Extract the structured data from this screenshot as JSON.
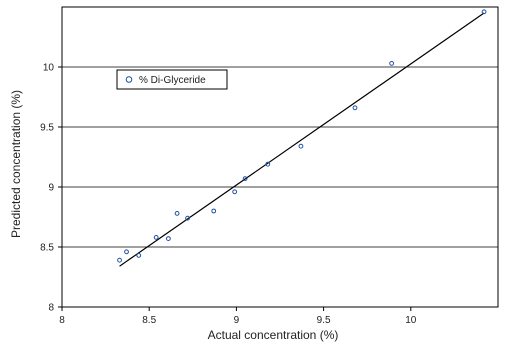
{
  "chart_data": {
    "type": "scatter",
    "xlabel": "Actual concentration (%)",
    "ylabel": "Predicted concentration (%)",
    "xlim": [
      8,
      10.5
    ],
    "ylim": [
      8,
      10.5
    ],
    "x_ticks": [
      8,
      8.5,
      9,
      9.5,
      10
    ],
    "x_tick_labels": [
      "8",
      "8.5",
      "9",
      "9.5",
      "10"
    ],
    "y_ticks": [
      8,
      8.5,
      9,
      9.5,
      10
    ],
    "y_tick_labels": [
      "8",
      "8.5",
      "9",
      "9.5",
      "10"
    ],
    "grid": "horizontal",
    "legend_position": "top-left",
    "series": [
      {
        "name": "% Di-Glyceride",
        "marker": "open-circle",
        "color": "#1f4fa3",
        "points": [
          {
            "x": 8.33,
            "y": 8.39
          },
          {
            "x": 8.37,
            "y": 8.46
          },
          {
            "x": 8.44,
            "y": 8.43
          },
          {
            "x": 8.54,
            "y": 8.58
          },
          {
            "x": 8.61,
            "y": 8.57
          },
          {
            "x": 8.66,
            "y": 8.78
          },
          {
            "x": 8.72,
            "y": 8.74
          },
          {
            "x": 8.87,
            "y": 8.8
          },
          {
            "x": 8.99,
            "y": 8.96
          },
          {
            "x": 9.05,
            "y": 9.07
          },
          {
            "x": 9.18,
            "y": 9.19
          },
          {
            "x": 9.37,
            "y": 9.34
          },
          {
            "x": 9.68,
            "y": 9.66
          },
          {
            "x": 9.89,
            "y": 10.03
          },
          {
            "x": 10.42,
            "y": 10.46
          }
        ]
      }
    ],
    "fit_line": {
      "x": [
        8.33,
        10.42
      ],
      "y": [
        8.34,
        10.45
      ],
      "color": "#000000"
    }
  }
}
